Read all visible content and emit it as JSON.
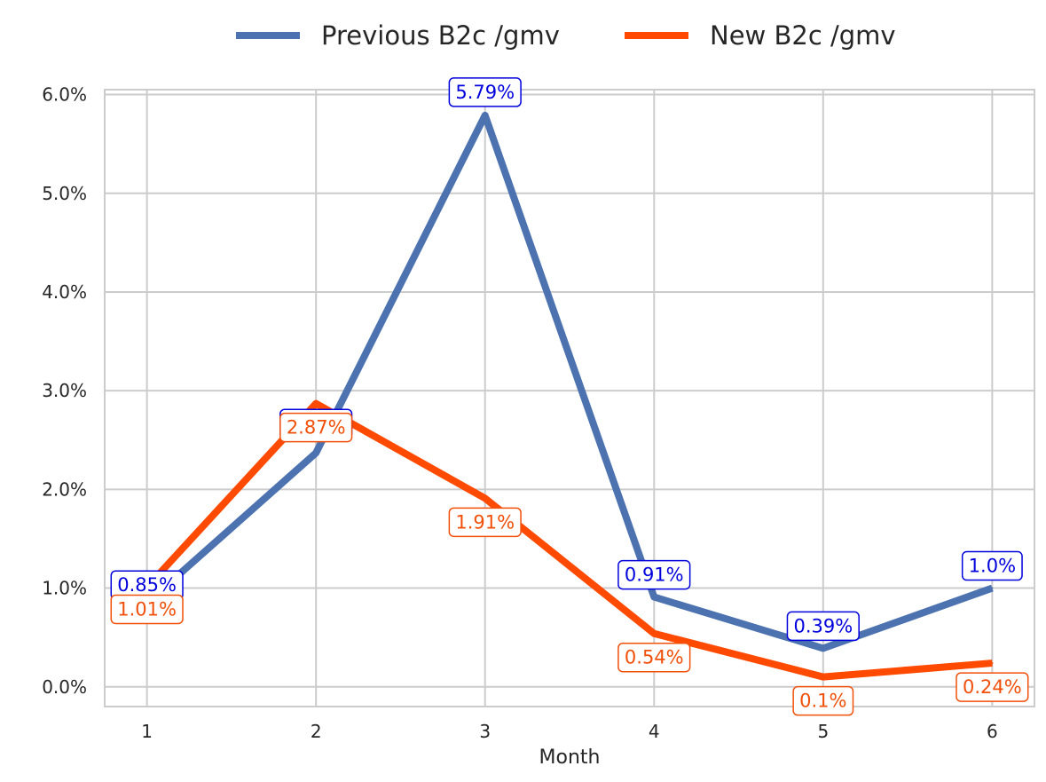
{
  "chart_data": {
    "type": "line",
    "title": "",
    "xlabel": "Month",
    "ylabel": "",
    "x": [
      1,
      2,
      3,
      4,
      5,
      6
    ],
    "xlim": [
      0.75,
      6.25
    ],
    "ylim": [
      -0.2,
      6.05
    ],
    "yticks": [
      0.0,
      1.0,
      2.0,
      3.0,
      4.0,
      5.0,
      6.0
    ],
    "ytick_labels": [
      "0.0%",
      "1.0%",
      "2.0%",
      "3.0%",
      "4.0%",
      "5.0%",
      "6.0%"
    ],
    "xtick_labels": [
      "1",
      "2",
      "3",
      "4",
      "5",
      "6"
    ],
    "grid": true,
    "legend_position": "top-center",
    "series": [
      {
        "name": "Previous B2c /gmv",
        "color": "#4C72B0",
        "label_color": "#0000DD",
        "values": [
          0.85,
          2.37,
          5.79,
          0.91,
          0.39,
          1.0
        ],
        "labels": [
          "0.85%",
          "2.37%",
          "5.79%",
          "0.91%",
          "0.39%",
          "1.0%"
        ]
      },
      {
        "name": "New B2c /gmv",
        "color": "#FF4A00",
        "label_color": "#F0500A",
        "values": [
          1.01,
          2.87,
          1.91,
          0.54,
          0.1,
          0.24
        ],
        "labels": [
          "1.01%",
          "2.87%",
          "1.91%",
          "0.54%",
          "0.1%",
          "0.24%"
        ]
      }
    ]
  }
}
